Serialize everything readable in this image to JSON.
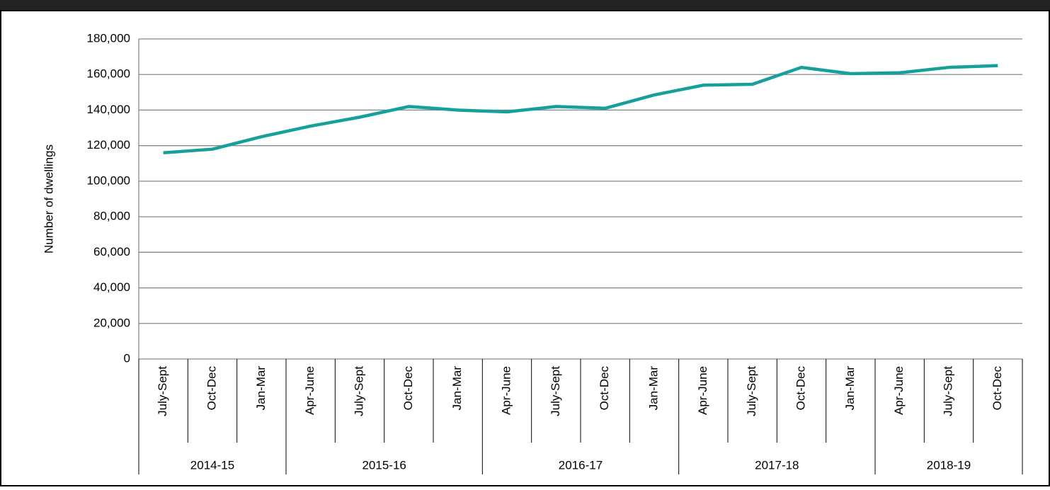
{
  "chart_data": {
    "type": "line",
    "y_label": "Number of dwellings",
    "category_groups": [
      {
        "label": "2014-15",
        "categories": [
          "July-Sept",
          "Oct-Dec",
          "Jan-Mar"
        ]
      },
      {
        "label": "2015-16",
        "categories": [
          "Apr-June",
          "July-Sept",
          "Oct-Dec",
          "Jan-Mar"
        ]
      },
      {
        "label": "2016-17",
        "categories": [
          "Apr-June",
          "July-Sept",
          "Oct-Dec",
          "Jan-Mar"
        ]
      },
      {
        "label": "2017-18",
        "categories": [
          "Apr-June",
          "July-Sept",
          "Oct-Dec",
          "Jan-Mar"
        ]
      },
      {
        "label": "2018-19",
        "categories": [
          "Apr-June",
          "July-Sept",
          "Oct-Dec"
        ]
      }
    ],
    "series": [
      {
        "color": "#17a09a",
        "values": [
          116000,
          118000,
          125000,
          131000,
          136000,
          142000,
          140000,
          139000,
          142000,
          141000,
          148500,
          154000,
          154500,
          164000,
          160500,
          161000,
          164000,
          165000
        ]
      }
    ],
    "ylim": [
      0,
      180000
    ],
    "yticks": [
      0,
      {
        "value": 20000,
        "label": "20,000"
      },
      {
        "value": 40000,
        "label": "40,000"
      },
      {
        "value": 60000,
        "label": "60,000"
      },
      {
        "value": 80000,
        "label": "80,000"
      },
      {
        "value": 100000,
        "label": "100,000"
      },
      {
        "value": 120000,
        "label": "120,000"
      },
      {
        "value": 140000,
        "label": "140,000"
      },
      {
        "value": 160000,
        "label": "160,000"
      },
      {
        "value": 180000,
        "label": "180,000"
      }
    ],
    "grid": true
  }
}
